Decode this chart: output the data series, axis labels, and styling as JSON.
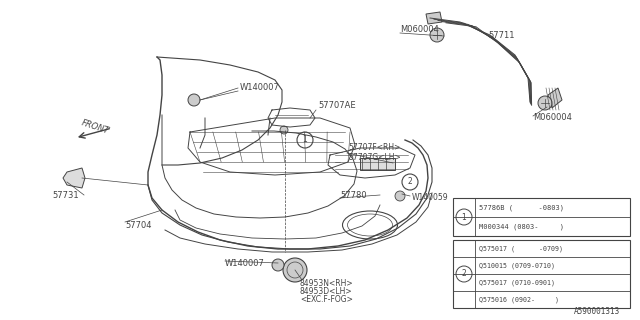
{
  "bg_color": "#ffffff",
  "line_color": "#444444",
  "parts_code": "A590001313",
  "table1_rows": [
    "57786B (      -0803)",
    "M000344 (0803-     )"
  ],
  "table2_rows": [
    "Q575017 (      -0709)",
    "Q510015 (0709-0710)",
    "Q575017 (0710-0901)",
    "Q575016 (0902-     )"
  ]
}
